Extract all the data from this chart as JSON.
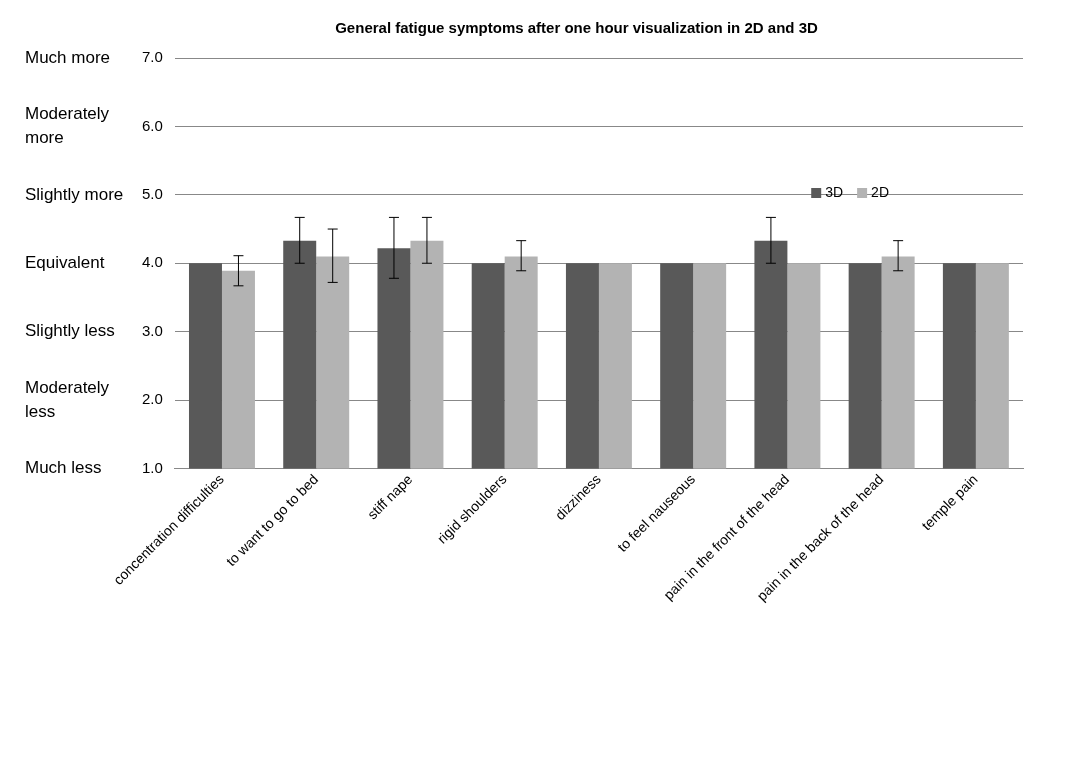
{
  "chart_data": {
    "type": "bar",
    "title": "General fatigue symptoms after one hour visualization in 2D and 3D",
    "categories": [
      "concentration difficulties",
      "to want to go to bed",
      "stiff nape",
      "rigid shoulders",
      "dizziness",
      "to feel nauseous",
      "pain in the front of the head",
      "pain in the back of the head",
      "temple pain"
    ],
    "series": [
      {
        "name": "3D",
        "color": "#595959",
        "values": [
          4.0,
          4.33,
          4.22,
          4.0,
          4.0,
          4.0,
          4.33,
          4.0,
          4.0
        ],
        "errors": [
          null,
          [
            4.0,
            4.67
          ],
          [
            3.78,
            4.67
          ],
          null,
          null,
          null,
          [
            4.0,
            4.67
          ],
          null,
          null
        ]
      },
      {
        "name": "2D",
        "color": "#b3b3b3",
        "values": [
          3.89,
          4.1,
          4.33,
          4.1,
          4.0,
          4.0,
          4.0,
          4.1,
          4.0
        ],
        "errors": [
          [
            3.67,
            4.11
          ],
          [
            3.72,
            4.5
          ],
          [
            4.0,
            4.67
          ],
          [
            3.89,
            4.33
          ],
          null,
          null,
          null,
          [
            3.89,
            4.33
          ],
          null
        ]
      }
    ],
    "ylim": [
      1,
      7
    ],
    "yticks": [
      {
        "value": 1,
        "label": "1.0"
      },
      {
        "value": 2,
        "label": "2.0"
      },
      {
        "value": 3,
        "label": "3.0"
      },
      {
        "value": 4,
        "label": "4.0"
      },
      {
        "value": 5,
        "label": "5.0"
      },
      {
        "value": 6,
        "label": "6.0"
      },
      {
        "value": 7,
        "label": "7.0"
      }
    ],
    "annotations": [
      "Much more",
      "Moderately more",
      "Slightly more",
      "Equivalent",
      "Slightly less",
      "Moderately less",
      "Much less"
    ],
    "grid": "y",
    "legend": "top right"
  }
}
